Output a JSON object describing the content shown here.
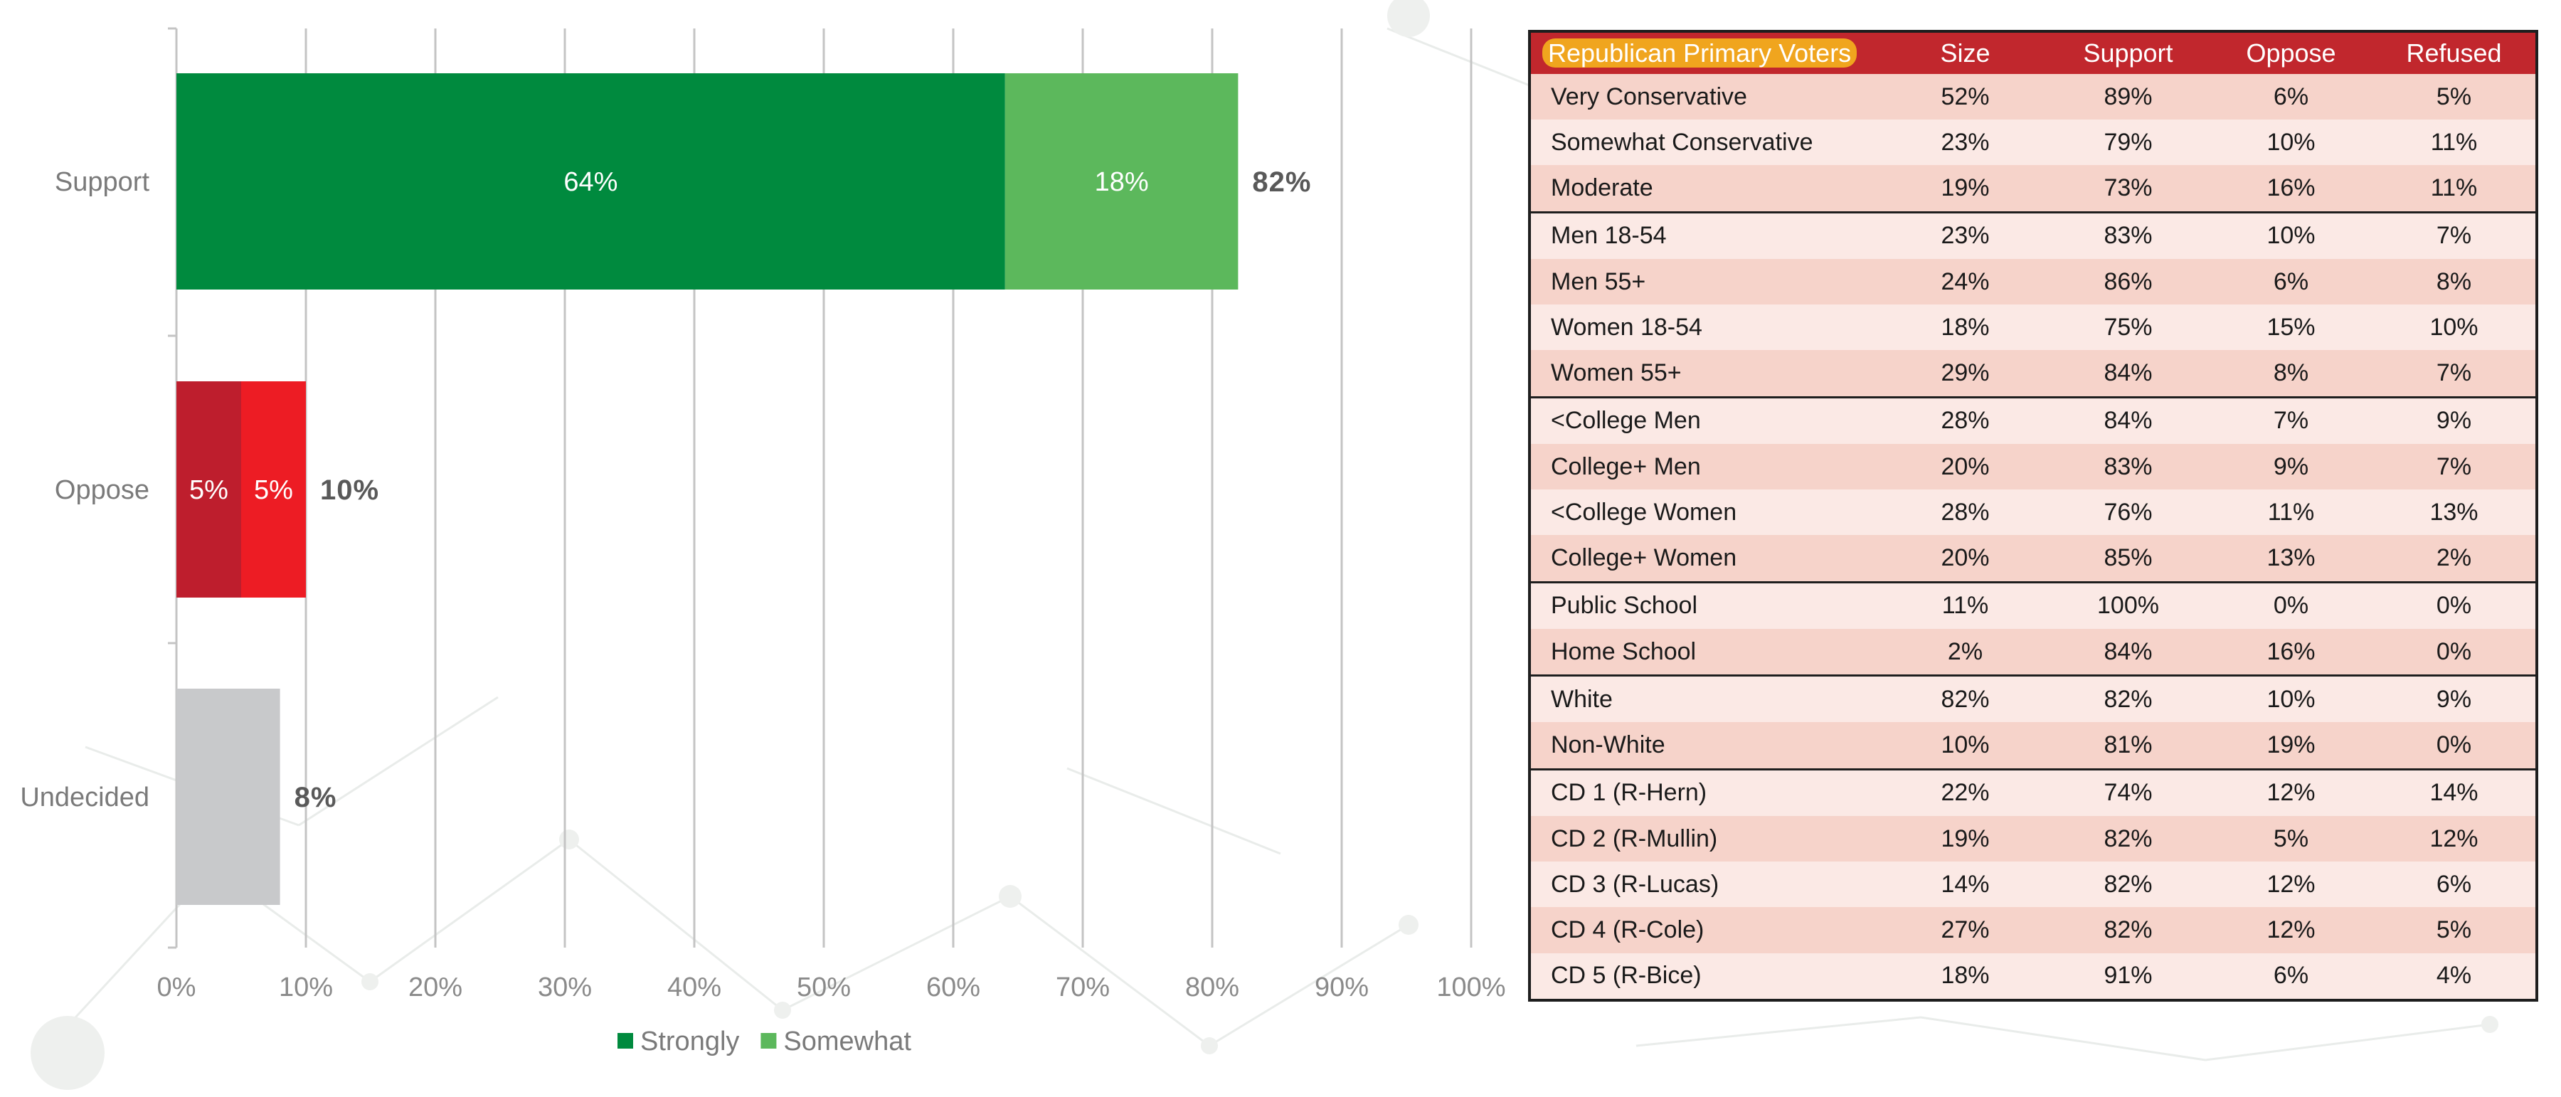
{
  "chart_data": {
    "type": "bar",
    "orientation": "horizontal",
    "stacked": true,
    "categories": [
      "Support",
      "Oppose",
      "Undecided"
    ],
    "series": [
      {
        "name": "Strongly",
        "values": [
          64,
          5,
          8
        ],
        "segment_labels": [
          "64%",
          "5%",
          null
        ]
      },
      {
        "name": "Somewhat",
        "values": [
          18,
          5,
          0
        ],
        "segment_labels": [
          "18%",
          "5%",
          null
        ]
      }
    ],
    "totals": [
      82,
      10,
      8
    ],
    "total_labels": [
      "82%",
      "10%",
      "8%"
    ],
    "xlim": [
      0,
      100
    ],
    "xticks": [
      0,
      10,
      20,
      30,
      40,
      50,
      60,
      70,
      80,
      90,
      100
    ],
    "tick_labels": [
      "0%",
      "10%",
      "20%",
      "30%",
      "40%",
      "50%",
      "60%",
      "70%",
      "80%",
      "90%",
      "100%"
    ],
    "grid": "vertical",
    "legend": {
      "position": "bottom",
      "entries": [
        "Strongly",
        "Somewhat"
      ]
    },
    "title": "",
    "xlabel": "",
    "ylabel": ""
  },
  "colors": {
    "support_strongly": "#008a3e",
    "support_somewhat": "#5cb85c",
    "oppose_strongly": "#be1e2d",
    "oppose_somewhat": "#ed1c24",
    "undecided": "#c8c9cb",
    "legend_strongly": "#008a3e",
    "legend_somewhat": "#5cb85c",
    "table_header": "#c1272d",
    "table_row_dark": "#f6d3ca",
    "table_row_light": "#fbe9e5"
  },
  "table": {
    "headers": [
      "Republican Primary Voters",
      "Size",
      "Support",
      "Oppose",
      "Refused"
    ],
    "groups": [
      [
        [
          "Very Conservative",
          "52%",
          "89%",
          "6%",
          "5%"
        ],
        [
          "Somewhat Conservative",
          "23%",
          "79%",
          "10%",
          "11%"
        ],
        [
          "Moderate",
          "19%",
          "73%",
          "16%",
          "11%"
        ]
      ],
      [
        [
          "Men 18-54",
          "23%",
          "83%",
          "10%",
          "7%"
        ],
        [
          "Men 55+",
          "24%",
          "86%",
          "6%",
          "8%"
        ],
        [
          "Women 18-54",
          "18%",
          "75%",
          "15%",
          "10%"
        ],
        [
          "Women 55+",
          "29%",
          "84%",
          "8%",
          "7%"
        ]
      ],
      [
        [
          "<College Men",
          "28%",
          "84%",
          "7%",
          "9%"
        ],
        [
          "College+ Men",
          "20%",
          "83%",
          "9%",
          "7%"
        ],
        [
          "<College Women",
          "28%",
          "76%",
          "11%",
          "13%"
        ],
        [
          "College+ Women",
          "20%",
          "85%",
          "13%",
          "2%"
        ]
      ],
      [
        [
          "Public School",
          "11%",
          "100%",
          "0%",
          "0%"
        ],
        [
          "Home School",
          "2%",
          "84%",
          "16%",
          "0%"
        ]
      ],
      [
        [
          "White",
          "82%",
          "82%",
          "10%",
          "9%"
        ],
        [
          "Non-White",
          "10%",
          "81%",
          "19%",
          "0%"
        ]
      ],
      [
        [
          "CD 1 (R-Hern)",
          "22%",
          "74%",
          "12%",
          "14%"
        ],
        [
          "CD 2 (R-Mullin)",
          "19%",
          "82%",
          "5%",
          "12%"
        ],
        [
          "CD 3 (R-Lucas)",
          "14%",
          "82%",
          "12%",
          "6%"
        ],
        [
          "CD 4 (R-Cole)",
          "27%",
          "82%",
          "12%",
          "5%"
        ],
        [
          "CD 5 (R-Bice)",
          "18%",
          "91%",
          "6%",
          "4%"
        ]
      ]
    ]
  }
}
